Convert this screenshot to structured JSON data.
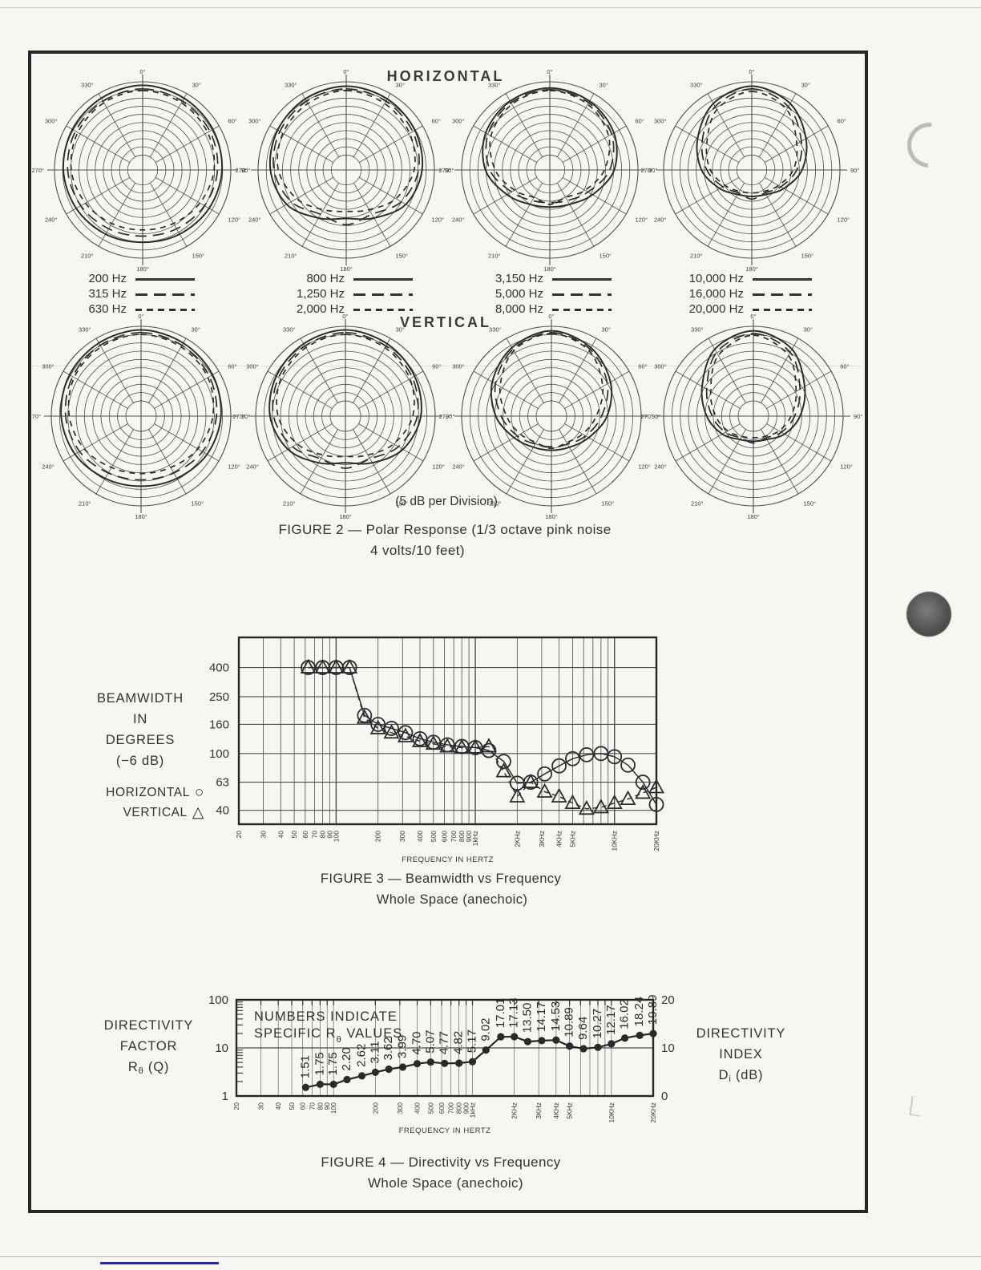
{
  "document": {
    "figure2": {
      "horizontal_title": "HORIZONTAL",
      "vertical_title": "VERTICAL",
      "division_note": "(5 dB per Division)",
      "caption": [
        "FIGURE 2 — Polar Response (1/3 octave pink noise",
        "4 volts/10 feet)"
      ]
    },
    "figure3": {
      "axis_label_lines": [
        "BEAMWIDTH",
        "IN",
        "DEGREES",
        "(−6 dB)"
      ],
      "legend_glyphs": [
        "○",
        "△"
      ],
      "caption": [
        "FIGURE 3 — Beamwidth vs Frequency",
        "Whole Space (anechoic)"
      ]
    },
    "figure4": {
      "left_axis_lines": [
        [
          {
            "t": "DIRECTIVITY"
          }
        ],
        [
          {
            "t": "FACTOR"
          }
        ],
        [
          {
            "t": "R"
          },
          {
            "t": "θ",
            "sub": true
          },
          {
            "t": " (Q)"
          }
        ]
      ],
      "right_axis_lines": [
        [
          {
            "t": "DIRECTIVITY"
          }
        ],
        [
          {
            "t": "INDEX"
          }
        ],
        [
          {
            "t": "D"
          },
          {
            "t": "i",
            "sub": true
          },
          {
            "t": " (dB)"
          }
        ]
      ],
      "caption": [
        "FIGURE 4 — Directivity vs Frequency",
        "Whole Space (anechoic)"
      ]
    }
  },
  "chart_data": [
    {
      "type": "polar",
      "title": "FIGURE 2 — Polar Response (1/3 octave pink noise 4 volts/10 feet)",
      "db_per_division": 5,
      "radial_divisions": 10,
      "angle_tick_labels": [
        "0°",
        "30°",
        "60°",
        "90°",
        "120°",
        "150°",
        "180°",
        "210°",
        "240°",
        "270°",
        "300°",
        "330°"
      ],
      "rows": [
        {
          "orientation": "HORIZONTAL",
          "plots": [
            {
              "series": [
                {
                  "label": "200 Hz",
                  "line_style": "solid",
                  "radii_normalized": [
                    0.96,
                    0.94,
                    0.92,
                    0.9,
                    0.87,
                    0.84,
                    0.82,
                    0.84,
                    0.87,
                    0.9,
                    0.92,
                    0.94
                  ]
                },
                {
                  "label": "315 Hz",
                  "line_style": "long-dash",
                  "radii_normalized": [
                    0.92,
                    0.9,
                    0.88,
                    0.85,
                    0.81,
                    0.77,
                    0.75,
                    0.77,
                    0.81,
                    0.85,
                    0.88,
                    0.9
                  ]
                },
                {
                  "label": "630 Hz",
                  "line_style": "short-dash",
                  "radii_normalized": [
                    0.9,
                    0.88,
                    0.85,
                    0.81,
                    0.75,
                    0.7,
                    0.68,
                    0.7,
                    0.75,
                    0.81,
                    0.85,
                    0.88
                  ]
                }
              ]
            },
            {
              "series": [
                {
                  "label": "800 Hz",
                  "line_style": "solid",
                  "radii_normalized": [
                    0.95,
                    0.93,
                    0.9,
                    0.86,
                    0.78,
                    0.63,
                    0.55,
                    0.63,
                    0.78,
                    0.86,
                    0.9,
                    0.93
                  ]
                },
                {
                  "label": "1,250 Hz",
                  "line_style": "long-dash",
                  "radii_normalized": [
                    0.92,
                    0.9,
                    0.87,
                    0.82,
                    0.72,
                    0.58,
                    0.62,
                    0.58,
                    0.72,
                    0.82,
                    0.87,
                    0.9
                  ]
                },
                {
                  "label": "2,000 Hz",
                  "line_style": "short-dash",
                  "radii_normalized": [
                    0.9,
                    0.87,
                    0.83,
                    0.77,
                    0.65,
                    0.52,
                    0.47,
                    0.52,
                    0.65,
                    0.77,
                    0.83,
                    0.87
                  ]
                }
              ]
            },
            {
              "series": [
                {
                  "label": "3,150 Hz",
                  "line_style": "solid",
                  "radii_normalized": [
                    0.93,
                    0.9,
                    0.84,
                    0.73,
                    0.56,
                    0.45,
                    0.42,
                    0.45,
                    0.56,
                    0.73,
                    0.84,
                    0.9
                  ]
                },
                {
                  "label": "5,000 Hz",
                  "line_style": "long-dash",
                  "radii_normalized": [
                    0.91,
                    0.88,
                    0.81,
                    0.68,
                    0.5,
                    0.4,
                    0.37,
                    0.4,
                    0.5,
                    0.68,
                    0.81,
                    0.88
                  ]
                },
                {
                  "label": "8,000 Hz",
                  "line_style": "short-dash",
                  "radii_normalized": [
                    0.9,
                    0.86,
                    0.77,
                    0.62,
                    0.46,
                    0.36,
                    0.39,
                    0.36,
                    0.46,
                    0.62,
                    0.77,
                    0.86
                  ]
                }
              ]
            },
            {
              "series": [
                {
                  "label": "10,000 Hz",
                  "line_style": "solid",
                  "radii_normalized": [
                    0.95,
                    0.87,
                    0.71,
                    0.57,
                    0.42,
                    0.32,
                    0.3,
                    0.32,
                    0.42,
                    0.57,
                    0.71,
                    0.87
                  ]
                },
                {
                  "label": "16,000 Hz",
                  "line_style": "long-dash",
                  "radii_normalized": [
                    0.92,
                    0.83,
                    0.65,
                    0.51,
                    0.38,
                    0.3,
                    0.33,
                    0.3,
                    0.38,
                    0.51,
                    0.65,
                    0.83
                  ]
                },
                {
                  "label": "20,000 Hz",
                  "line_style": "short-dash",
                  "radii_normalized": [
                    0.89,
                    0.79,
                    0.59,
                    0.47,
                    0.35,
                    0.28,
                    0.26,
                    0.28,
                    0.35,
                    0.47,
                    0.59,
                    0.79
                  ]
                }
              ]
            }
          ]
        },
        {
          "orientation": "VERTICAL",
          "plots": [
            {
              "series": [
                {
                  "label": "200 Hz",
                  "line_style": "solid",
                  "radii_normalized": [
                    0.96,
                    0.94,
                    0.92,
                    0.89,
                    0.85,
                    0.8,
                    0.78,
                    0.8,
                    0.85,
                    0.89,
                    0.92,
                    0.94
                  ]
                },
                {
                  "label": "315 Hz",
                  "line_style": "long-dash",
                  "radii_normalized": [
                    0.93,
                    0.91,
                    0.88,
                    0.84,
                    0.79,
                    0.73,
                    0.71,
                    0.73,
                    0.79,
                    0.84,
                    0.88,
                    0.91
                  ]
                },
                {
                  "label": "630 Hz",
                  "line_style": "short-dash",
                  "radii_normalized": [
                    0.91,
                    0.89,
                    0.86,
                    0.8,
                    0.73,
                    0.66,
                    0.64,
                    0.66,
                    0.73,
                    0.8,
                    0.86,
                    0.89
                  ]
                }
              ]
            },
            {
              "series": [
                {
                  "label": "800 Hz",
                  "line_style": "solid",
                  "radii_normalized": [
                    0.96,
                    0.93,
                    0.89,
                    0.84,
                    0.74,
                    0.6,
                    0.52,
                    0.6,
                    0.74,
                    0.84,
                    0.89,
                    0.93
                  ]
                },
                {
                  "label": "1,250 Hz",
                  "line_style": "long-dash",
                  "radii_normalized": [
                    0.93,
                    0.9,
                    0.86,
                    0.8,
                    0.68,
                    0.55,
                    0.58,
                    0.55,
                    0.68,
                    0.8,
                    0.86,
                    0.9
                  ]
                },
                {
                  "label": "2,000 Hz",
                  "line_style": "short-dash",
                  "radii_normalized": [
                    0.91,
                    0.88,
                    0.83,
                    0.75,
                    0.62,
                    0.5,
                    0.45,
                    0.5,
                    0.62,
                    0.75,
                    0.83,
                    0.88
                  ]
                }
              ]
            },
            {
              "series": [
                {
                  "label": "3,150 Hz",
                  "line_style": "solid",
                  "radii_normalized": [
                    0.95,
                    0.88,
                    0.76,
                    0.62,
                    0.48,
                    0.4,
                    0.38,
                    0.4,
                    0.48,
                    0.62,
                    0.76,
                    0.88
                  ]
                },
                {
                  "label": "5,000 Hz",
                  "line_style": "long-dash",
                  "radii_normalized": [
                    0.93,
                    0.86,
                    0.72,
                    0.56,
                    0.44,
                    0.36,
                    0.34,
                    0.36,
                    0.44,
                    0.56,
                    0.72,
                    0.86
                  ]
                },
                {
                  "label": "8,000 Hz",
                  "line_style": "short-dash",
                  "radii_normalized": [
                    0.92,
                    0.84,
                    0.66,
                    0.5,
                    0.4,
                    0.34,
                    0.36,
                    0.34,
                    0.4,
                    0.5,
                    0.66,
                    0.84
                  ]
                }
              ]
            },
            {
              "series": [
                {
                  "label": "10,000 Hz",
                  "line_style": "solid",
                  "radii_normalized": [
                    0.95,
                    0.86,
                    0.66,
                    0.52,
                    0.4,
                    0.3,
                    0.28,
                    0.3,
                    0.4,
                    0.52,
                    0.66,
                    0.86
                  ]
                },
                {
                  "label": "16,000 Hz",
                  "line_style": "long-dash",
                  "radii_normalized": [
                    0.92,
                    0.82,
                    0.6,
                    0.46,
                    0.36,
                    0.28,
                    0.3,
                    0.28,
                    0.36,
                    0.46,
                    0.6,
                    0.82
                  ]
                },
                {
                  "label": "20,000 Hz",
                  "line_style": "short-dash",
                  "radii_normalized": [
                    0.9,
                    0.78,
                    0.55,
                    0.42,
                    0.33,
                    0.26,
                    0.24,
                    0.26,
                    0.33,
                    0.42,
                    0.55,
                    0.78
                  ]
                }
              ]
            }
          ]
        }
      ]
    },
    {
      "type": "line",
      "title": "FIGURE 3 — Beamwidth vs Frequency",
      "subtitle": "Whole Space (anechoic)",
      "xlabel": "FREQUENCY IN HERTZ",
      "ylabel": "BEAMWIDTH IN DEGREES (−6 dB)",
      "log_x": true,
      "log_y": true,
      "xlim": [
        20,
        20000
      ],
      "ylim": [
        32,
        650
      ],
      "y_ticks": [
        400,
        250,
        160,
        100,
        63,
        40
      ],
      "x_tick_labels": [
        "20",
        "30",
        "40",
        "50",
        "60",
        "70",
        "80",
        "90",
        "100",
        "200",
        "300",
        "400",
        "500",
        "600",
        "700",
        "800",
        "900",
        "1kHz",
        "2KHz",
        "3KHz",
        "4KHz",
        "5KHz",
        "10KHz",
        "20KHz"
      ],
      "x_tick_freqs": [
        20,
        30,
        40,
        50,
        60,
        70,
        80,
        90,
        100,
        200,
        300,
        400,
        500,
        600,
        700,
        800,
        900,
        1000,
        2000,
        3000,
        4000,
        5000,
        10000,
        20000
      ],
      "x": [
        63,
        80,
        100,
        125,
        160,
        200,
        250,
        315,
        400,
        500,
        630,
        800,
        1000,
        1250,
        1600,
        2000,
        2500,
        3150,
        4000,
        5000,
        6300,
        8000,
        10000,
        12500,
        16000,
        20000
      ],
      "series": [
        {
          "name": "HORIZONTAL",
          "marker": "circle",
          "values": [
            400,
            400,
            400,
            400,
            185,
            160,
            150,
            140,
            127,
            120,
            115,
            112,
            110,
            105,
            88,
            62,
            63,
            72,
            82,
            92,
            98,
            100,
            95,
            83,
            63,
            44
          ]
        },
        {
          "name": "VERTICAL",
          "marker": "triangle",
          "values": [
            400,
            400,
            400,
            400,
            178,
            150,
            140,
            132,
            122,
            117,
            112,
            110,
            110,
            112,
            75,
            50,
            63,
            54,
            50,
            45,
            41,
            42,
            45,
            48,
            53,
            58
          ]
        }
      ]
    },
    {
      "type": "line",
      "title": "FIGURE 4 — Directivity vs Frequency",
      "subtitle": "Whole Space (anechoic)",
      "xlabel": "FREQUENCY IN HERTZ",
      "left_ylabel": "DIRECTIVITY FACTOR Rθ (Q)",
      "right_ylabel": "DIRECTIVITY INDEX Di (dB)",
      "annotation_lines": [
        [
          {
            "t": "NUMBERS INDICATE"
          }
        ],
        [
          {
            "t": "SPECIFIC R"
          },
          {
            "t": "θ",
            "sub": true
          },
          {
            "t": " VALUES"
          }
        ]
      ],
      "log_x": true,
      "log_y": true,
      "xlim": [
        20,
        20000
      ],
      "ylim_left": [
        1,
        100
      ],
      "ylim_right_db": [
        0,
        20
      ],
      "left_tick_labels": [
        "100",
        "10",
        "1"
      ],
      "right_tick_labels": [
        "20",
        "10",
        "0"
      ],
      "x_tick_labels": [
        "20",
        "30",
        "40",
        "50",
        "60",
        "70",
        "80",
        "90",
        "100",
        "200",
        "300",
        "400",
        "500",
        "600",
        "700",
        "800",
        "900",
        "1kHz",
        "2KHz",
        "3KHz",
        "4KHz",
        "5KHz",
        "10KHz",
        "20KHz"
      ],
      "x_tick_freqs": [
        20,
        30,
        40,
        50,
        60,
        70,
        80,
        90,
        100,
        200,
        300,
        400,
        500,
        600,
        700,
        800,
        900,
        1000,
        2000,
        3000,
        4000,
        5000,
        10000,
        20000
      ],
      "x": [
        63,
        80,
        100,
        125,
        160,
        200,
        250,
        315,
        400,
        500,
        630,
        800,
        1000,
        1250,
        1600,
        2000,
        2500,
        3150,
        4000,
        5000,
        6300,
        8000,
        10000,
        12500,
        16000,
        20000
      ],
      "values": [
        1.51,
        1.75,
        1.75,
        2.2,
        2.62,
        3.11,
        3.62,
        3.99,
        4.7,
        5.07,
        4.77,
        4.82,
        5.17,
        9.02,
        17.01,
        17.13,
        13.5,
        14.17,
        14.53,
        10.89,
        9.64,
        10.27,
        12.17,
        16.02,
        18.24,
        19.89
      ],
      "point_labels": [
        "1.51",
        "1.75",
        "1.75",
        "2.20",
        "2.62",
        "3.11",
        "3.62",
        "3.99",
        "4.70",
        "5.07",
        "4.77",
        "4.82",
        "5.17",
        "9.02",
        "17.01",
        "17.13",
        "13.50",
        "14.17",
        "14.53",
        "10.89",
        "9.64",
        "10.27",
        "12.17",
        "16.02",
        "18.24",
        "19.89"
      ]
    }
  ]
}
